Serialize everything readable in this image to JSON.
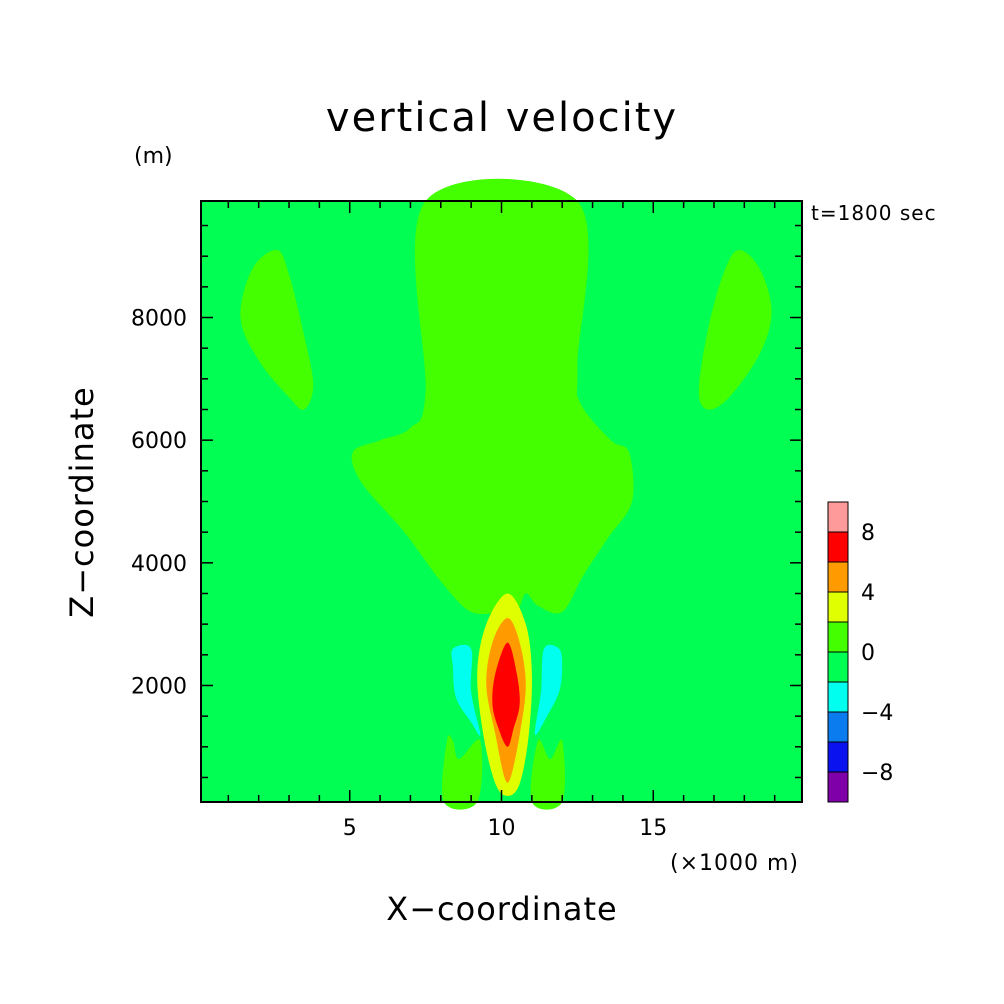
{
  "chart_data": {
    "type": "heatmap",
    "subtype": "filled-contour",
    "title": "vertical velocity",
    "xlabel": "X−coordinate",
    "x_unit_note": "(×1000 m)",
    "ylabel": "Z−coordinate",
    "y_unit_note": "(m)",
    "time_label": "t=1800 sec",
    "xlim": [
      0.1,
      19.9
    ],
    "ylim": [
      100,
      9900
    ],
    "x_ticks": [
      5,
      10,
      15
    ],
    "y_ticks": [
      2000,
      4000,
      6000,
      8000
    ],
    "colorbar": {
      "levels": [
        -10,
        -8,
        -6,
        -4,
        -2,
        0,
        2,
        4,
        6,
        8,
        10
      ],
      "colors": [
        "#7f00a8",
        "#0a12ef",
        "#0b7cf0",
        "#00ffef",
        "#00ff52",
        "#44ff00",
        "#e0ff00",
        "#ff9b00",
        "#ff0000",
        "#ff9a9a"
      ],
      "tick_labels": [
        "−8",
        "−4",
        "0",
        "4",
        "8"
      ],
      "tick_values": [
        -8,
        -4,
        0,
        4,
        8
      ]
    },
    "regions": [
      {
        "name": "upper-left-lobe",
        "value_range": [
          0,
          2
        ],
        "points": [
          [
            2.6,
            9100
          ],
          [
            3.0,
            8700
          ],
          [
            3.5,
            7700
          ],
          [
            3.8,
            6900
          ],
          [
            3.5,
            6500
          ],
          [
            3.0,
            6700
          ],
          [
            2.0,
            7300
          ],
          [
            1.4,
            8000
          ],
          [
            1.8,
            8800
          ]
        ]
      },
      {
        "name": "upper-right-lobe",
        "value_range": [
          0,
          2
        ],
        "points": [
          [
            17.8,
            9100
          ],
          [
            18.5,
            8800
          ],
          [
            18.9,
            8100
          ],
          [
            18.5,
            7400
          ],
          [
            17.5,
            6700
          ],
          [
            16.8,
            6500
          ],
          [
            16.5,
            6800
          ],
          [
            16.8,
            7800
          ],
          [
            17.3,
            8700
          ]
        ]
      },
      {
        "name": "central-plume",
        "value_range": [
          0,
          2
        ],
        "points": [
          [
            7.5,
            9900
          ],
          [
            12.5,
            9900
          ],
          [
            12.5,
            7200
          ],
          [
            12.6,
            6600
          ],
          [
            13.6,
            6000
          ],
          [
            14.2,
            5800
          ],
          [
            14.3,
            5000
          ],
          [
            13.5,
            4400
          ],
          [
            12.7,
            3800
          ],
          [
            12.0,
            3200
          ],
          [
            11.2,
            3300
          ],
          [
            10.8,
            3500
          ],
          [
            10.5,
            3200
          ],
          [
            10.0,
            3200
          ],
          [
            9.0,
            3200
          ],
          [
            8.0,
            3700
          ],
          [
            6.8,
            4500
          ],
          [
            5.4,
            5300
          ],
          [
            5.1,
            5800
          ],
          [
            6.0,
            6000
          ],
          [
            7.0,
            6200
          ],
          [
            7.5,
            6800
          ]
        ]
      },
      {
        "name": "lower-left-skirt",
        "value_range": [
          0,
          2
        ],
        "points": [
          [
            8.1,
            100
          ],
          [
            8.2,
            1100
          ],
          [
            8.4,
            1100
          ],
          [
            8.6,
            800
          ],
          [
            9.3,
            1100
          ],
          [
            9.2,
            100
          ]
        ]
      },
      {
        "name": "lower-right-skirt",
        "value_range": [
          0,
          2
        ],
        "points": [
          [
            11.0,
            100
          ],
          [
            11.2,
            1100
          ],
          [
            11.6,
            800
          ],
          [
            12.0,
            1100
          ],
          [
            12.0,
            100
          ]
        ]
      },
      {
        "name": "updraft-2",
        "value_range": [
          2,
          4
        ],
        "points": [
          [
            10.2,
            3500
          ],
          [
            10.8,
            3000
          ],
          [
            11.0,
            2200
          ],
          [
            10.9,
            1200
          ],
          [
            10.6,
            400
          ],
          [
            10.2,
            200
          ],
          [
            9.8,
            400
          ],
          [
            9.4,
            1200
          ],
          [
            9.2,
            2200
          ],
          [
            9.5,
            3000
          ]
        ]
      },
      {
        "name": "updraft-4",
        "value_range": [
          4,
          6
        ],
        "points": [
          [
            10.2,
            3100
          ],
          [
            10.6,
            2700
          ],
          [
            10.8,
            2000
          ],
          [
            10.6,
            1200
          ],
          [
            10.3,
            500
          ],
          [
            10.1,
            500
          ],
          [
            9.8,
            1200
          ],
          [
            9.5,
            2000
          ],
          [
            9.7,
            2700
          ]
        ]
      },
      {
        "name": "updraft-6",
        "value_range": [
          6,
          8
        ],
        "points": [
          [
            10.2,
            2700
          ],
          [
            10.5,
            2200
          ],
          [
            10.6,
            1700
          ],
          [
            10.4,
            1300
          ],
          [
            10.2,
            1000
          ],
          [
            9.9,
            1300
          ],
          [
            9.7,
            1700
          ],
          [
            9.8,
            2200
          ]
        ]
      },
      {
        "name": "left-downdraft",
        "value_range": [
          -4,
          -2
        ],
        "points": [
          [
            8.4,
            2600
          ],
          [
            9.0,
            2600
          ],
          [
            9.0,
            1900
          ],
          [
            9.3,
            1200
          ],
          [
            9.0,
            1400
          ],
          [
            8.5,
            1800
          ],
          [
            8.4,
            2300
          ]
        ]
      },
      {
        "name": "right-downdraft",
        "value_range": [
          -4,
          -2
        ],
        "points": [
          [
            11.4,
            2600
          ],
          [
            11.9,
            2600
          ],
          [
            12.0,
            2300
          ],
          [
            11.9,
            1900
          ],
          [
            11.5,
            1500
          ],
          [
            11.1,
            1200
          ],
          [
            11.3,
            1900
          ]
        ]
      }
    ]
  }
}
